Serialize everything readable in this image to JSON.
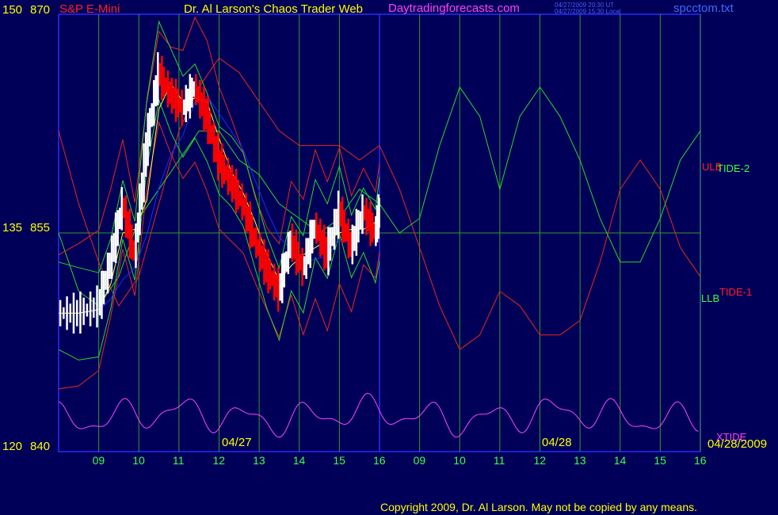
{
  "header": {
    "instrument": "S&P E-Mini",
    "site_title": "Dr. Al Larson's Chaos Trader Web",
    "site_url": "Daytradingforecasts.com",
    "stamp_ut": "04/27/2009 20:30 UT",
    "stamp_local": "04/27/2009 15:30 Local",
    "file_name": "spcctom.txt"
  },
  "footer": {
    "copyright": "Copyright 2009, Dr. Al Larson. May not be copied by any means."
  },
  "colors": {
    "background": "#000058",
    "grid": "#2f9c2f",
    "axis": "#2a2aff",
    "price_up": "#ffffff",
    "price_down": "#ff0000",
    "tide_1": "#e8281e",
    "tide_2": "#2bd82b",
    "xtide": "#ff44ff",
    "blue_average": "#1a2bff",
    "yellow_average": "#ffff33",
    "label_yellow": "#ffff00",
    "label_green": "#40ff40"
  },
  "chart_data": {
    "type": "line",
    "title": "",
    "x_hour_ticks": [
      "09",
      "10",
      "11",
      "12",
      "13",
      "14",
      "15",
      "16",
      "09",
      "10",
      "11",
      "12",
      "13",
      "14",
      "15",
      "16"
    ],
    "date_labels": [
      "04/27",
      "04/28",
      "04/28/2009"
    ],
    "y_levels": [
      {
        "left": "150",
        "right": "870"
      },
      {
        "left": "135",
        "right": "855"
      },
      {
        "left": "120",
        "right": "840"
      }
    ],
    "ylim": [
      840,
      870
    ],
    "grid": true,
    "series_labels": {
      "upper": "ULB",
      "tide2": "TIDE-2",
      "tide1": "TIDE-1",
      "lower": "LLB",
      "xtide": "XTIDE"
    },
    "price_bars_approx": {
      "x_hours": [
        8.0,
        8.5,
        9.0,
        9.3,
        9.6,
        9.9,
        10.2,
        10.5,
        10.8,
        11.1,
        11.4,
        11.7,
        12.0,
        12.3,
        12.6,
        12.9,
        13.2,
        13.5,
        13.8,
        14.1,
        14.4,
        14.7,
        15.0,
        15.3,
        15.6,
        15.9,
        16.0
      ],
      "close": [
        849.5,
        849.5,
        850.0,
        853.0,
        857.0,
        853.5,
        861.0,
        866.0,
        864.5,
        863.5,
        865.0,
        863.0,
        860.0,
        858.5,
        857.0,
        854.5,
        852.5,
        851.0,
        854.5,
        852.5,
        855.5,
        853.5,
        856.5,
        854.0,
        856.5,
        855.0,
        856.5
      ]
    },
    "tide_1_approx": {
      "x_hours": [
        8.0,
        8.5,
        9.0,
        9.5,
        10.0,
        10.5,
        11.0,
        11.5,
        12.0,
        12.5,
        13.0,
        13.5,
        14.0,
        14.5,
        15.0,
        15.5,
        16.0,
        16.5,
        17.0,
        17.5,
        18.0,
        18.5,
        19.0,
        19.5,
        20.0,
        20.5,
        21.0,
        21.5,
        22.0,
        22.5,
        23.0,
        23.5,
        24.0
      ],
      "values": [
        862,
        857,
        853,
        850,
        852,
        857,
        862,
        865,
        867,
        866,
        864,
        862,
        861,
        861,
        861,
        860,
        861,
        858,
        854,
        850,
        847,
        848,
        851,
        850,
        848,
        848,
        849,
        853,
        858,
        860,
        858,
        854,
        852
      ]
    },
    "tide_2_approx": {
      "x_hours": [
        8.0,
        8.5,
        9.0,
        9.5,
        10.0,
        10.5,
        11.0,
        11.5,
        12.0,
        12.5,
        13.0,
        13.5,
        14.0,
        14.5,
        15.0,
        15.5,
        16.0,
        16.5,
        17.0,
        17.5,
        18.0,
        18.5,
        19.0,
        19.5,
        20.0,
        20.5,
        21.0,
        21.5,
        22.0,
        22.5,
        23.0,
        23.5,
        24.0
      ],
      "values": [
        855,
        851,
        850,
        852,
        856,
        858,
        860,
        862,
        862,
        860,
        859,
        857,
        856,
        855,
        856,
        858,
        857,
        855,
        856,
        861,
        865,
        863,
        858,
        863,
        865,
        863,
        860,
        856,
        853,
        853,
        856,
        860,
        862
      ]
    },
    "xtide_note": "oscillator plotted in lower panel; numeric values not printed"
  }
}
